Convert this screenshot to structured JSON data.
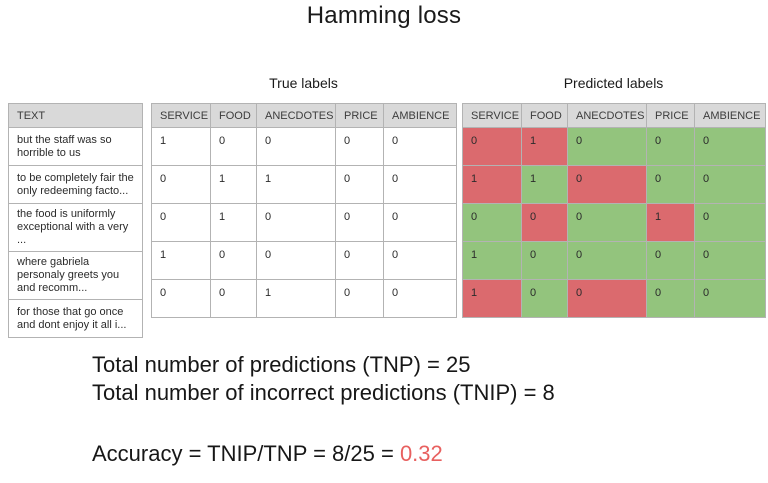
{
  "title": "Hamming loss",
  "sections": {
    "true_heading": "True labels",
    "predicted_heading": "Predicted labels"
  },
  "text_table": {
    "header": "TEXT",
    "rows": [
      "but the staff was so horrible to us",
      "to be completely fair the only redeeming facto...",
      "the food is uniformly exceptional with a very ...",
      "where gabriela personaly greets you and recomm...",
      "for those that go once and dont enjoy it all i..."
    ]
  },
  "label_columns": [
    "SERVICE",
    "FOOD",
    "ANECDOTES",
    "PRICE",
    "AMBIENCE"
  ],
  "true_table": {
    "rows": [
      [
        1,
        0,
        0,
        0,
        0
      ],
      [
        0,
        1,
        1,
        0,
        0
      ],
      [
        0,
        1,
        0,
        0,
        0
      ],
      [
        1,
        0,
        0,
        0,
        0
      ],
      [
        0,
        0,
        1,
        0,
        0
      ]
    ]
  },
  "predicted_table": {
    "rows": [
      [
        0,
        1,
        0,
        0,
        0
      ],
      [
        1,
        1,
        0,
        0,
        0
      ],
      [
        0,
        0,
        0,
        1,
        0
      ],
      [
        1,
        0,
        0,
        0,
        0
      ],
      [
        1,
        0,
        0,
        0,
        0
      ]
    ],
    "status": [
      [
        "incorrect",
        "incorrect",
        "correct",
        "correct",
        "correct"
      ],
      [
        "incorrect",
        "correct",
        "incorrect",
        "correct",
        "correct"
      ],
      [
        "correct",
        "incorrect",
        "correct",
        "incorrect",
        "correct"
      ],
      [
        "correct",
        "correct",
        "correct",
        "correct",
        "correct"
      ],
      [
        "incorrect",
        "correct",
        "incorrect",
        "correct",
        "correct"
      ]
    ]
  },
  "summary": {
    "tnp_line": "Total number of predictions (TNP) = 25",
    "tnip_line": "Total number of incorrect predictions (TNIP) = 8",
    "accuracy_prefix": "Accuracy = TNIP/TNP = 8/25 = ",
    "accuracy_value": "0.32"
  },
  "colors": {
    "correct_green": "#93c47d",
    "incorrect_red": "#db6a6e",
    "accuracy_red": "#e8605f",
    "header_gray": "#d9d9d9"
  }
}
